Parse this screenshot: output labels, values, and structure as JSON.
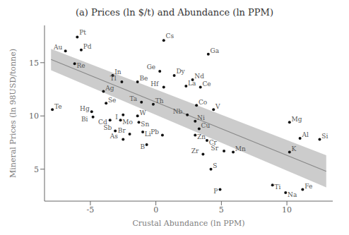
{
  "chart_data": {
    "type": "scatter",
    "title": "(a) Prices (ln $/t) and Abundance (ln PPM)",
    "xlabel": "Crustal Abundance (ln PPM)",
    "ylabel": "Mineral Prices (ln 98USD/tonne)",
    "xlim": [
      -8.5,
      13.5
    ],
    "ylim": [
      2,
      18.5
    ],
    "xticks": [
      -5,
      0,
      5,
      10
    ],
    "yticks": [
      5,
      10,
      15
    ],
    "series": [
      {
        "type": "area",
        "x": [
          -8.0,
          13.0
        ],
        "lower": [
          14.3,
          3.3
        ],
        "upper": [
          16.3,
          6.3
        ],
        "color": "#cccccc"
      },
      {
        "type": "line",
        "x": [
          -8.0,
          13.0
        ],
        "values": [
          15.3,
          4.8
        ],
        "color": "#888888"
      },
      {
        "type": "scatter",
        "color": "#111111",
        "labels": [
          "Pt",
          "Au",
          "Pd",
          "Re",
          "Cs",
          "Ga",
          "In",
          "Ge",
          "Dy",
          "Nd",
          "Tl",
          "Be",
          "Hf",
          "La",
          "Ce",
          "Ag",
          "Te",
          "Se",
          "Ta",
          "Th",
          "Co",
          "Nb",
          "V",
          "Hg",
          "Bi",
          "I",
          "W",
          "Ni",
          "Cd",
          "Mo",
          "Sn",
          "Cu",
          "Sb",
          "Br",
          "Li",
          "Pb",
          "Zn",
          "As",
          "B",
          "Cr",
          "Sr",
          "Mn",
          "Zr",
          "S",
          "Ti",
          "P",
          "Na",
          "Fe",
          "K",
          "Al",
          "Si",
          "Mg"
        ],
        "x": [
          -6.0,
          -6.9,
          -5.7,
          -6.2,
          0.6,
          4.0,
          -3.3,
          0.3,
          1.4,
          2.8,
          -2.6,
          -1.4,
          0.6,
          2.3,
          3.4,
          -4.0,
          -7.9,
          -3.8,
          -1.1,
          -0.2,
          3.1,
          2.4,
          4.4,
          -4.9,
          -4.8,
          -2.5,
          -1.4,
          3.0,
          -3.5,
          -2.7,
          -1.3,
          3.3,
          -3.1,
          -2.0,
          -1.0,
          0.5,
          3.0,
          -2.5,
          -0.7,
          3.9,
          5.2,
          5.9,
          3.6,
          4.2,
          8.9,
          4.9,
          9.9,
          11.2,
          10.2,
          11.0,
          12.5,
          10.2
        ],
        "values": [
          17.4,
          16.1,
          16.2,
          14.9,
          17.1,
          15.8,
          13.8,
          14.2,
          13.8,
          13.4,
          13.2,
          13.2,
          12.7,
          12.8,
          12.7,
          12.3,
          10.6,
          11.2,
          11.3,
          11.1,
          11.0,
          10.1,
          10.6,
          10.4,
          9.9,
          10.1,
          10.0,
          9.5,
          9.6,
          9.6,
          9.4,
          8.8,
          8.6,
          8.3,
          8.5,
          8.2,
          8.2,
          7.8,
          7.3,
          7.7,
          6.7,
          6.6,
          6.4,
          5.0,
          3.5,
          3.1,
          2.8,
          3.1,
          6.6,
          7.9,
          7.8,
          9.4
        ]
      }
    ]
  }
}
